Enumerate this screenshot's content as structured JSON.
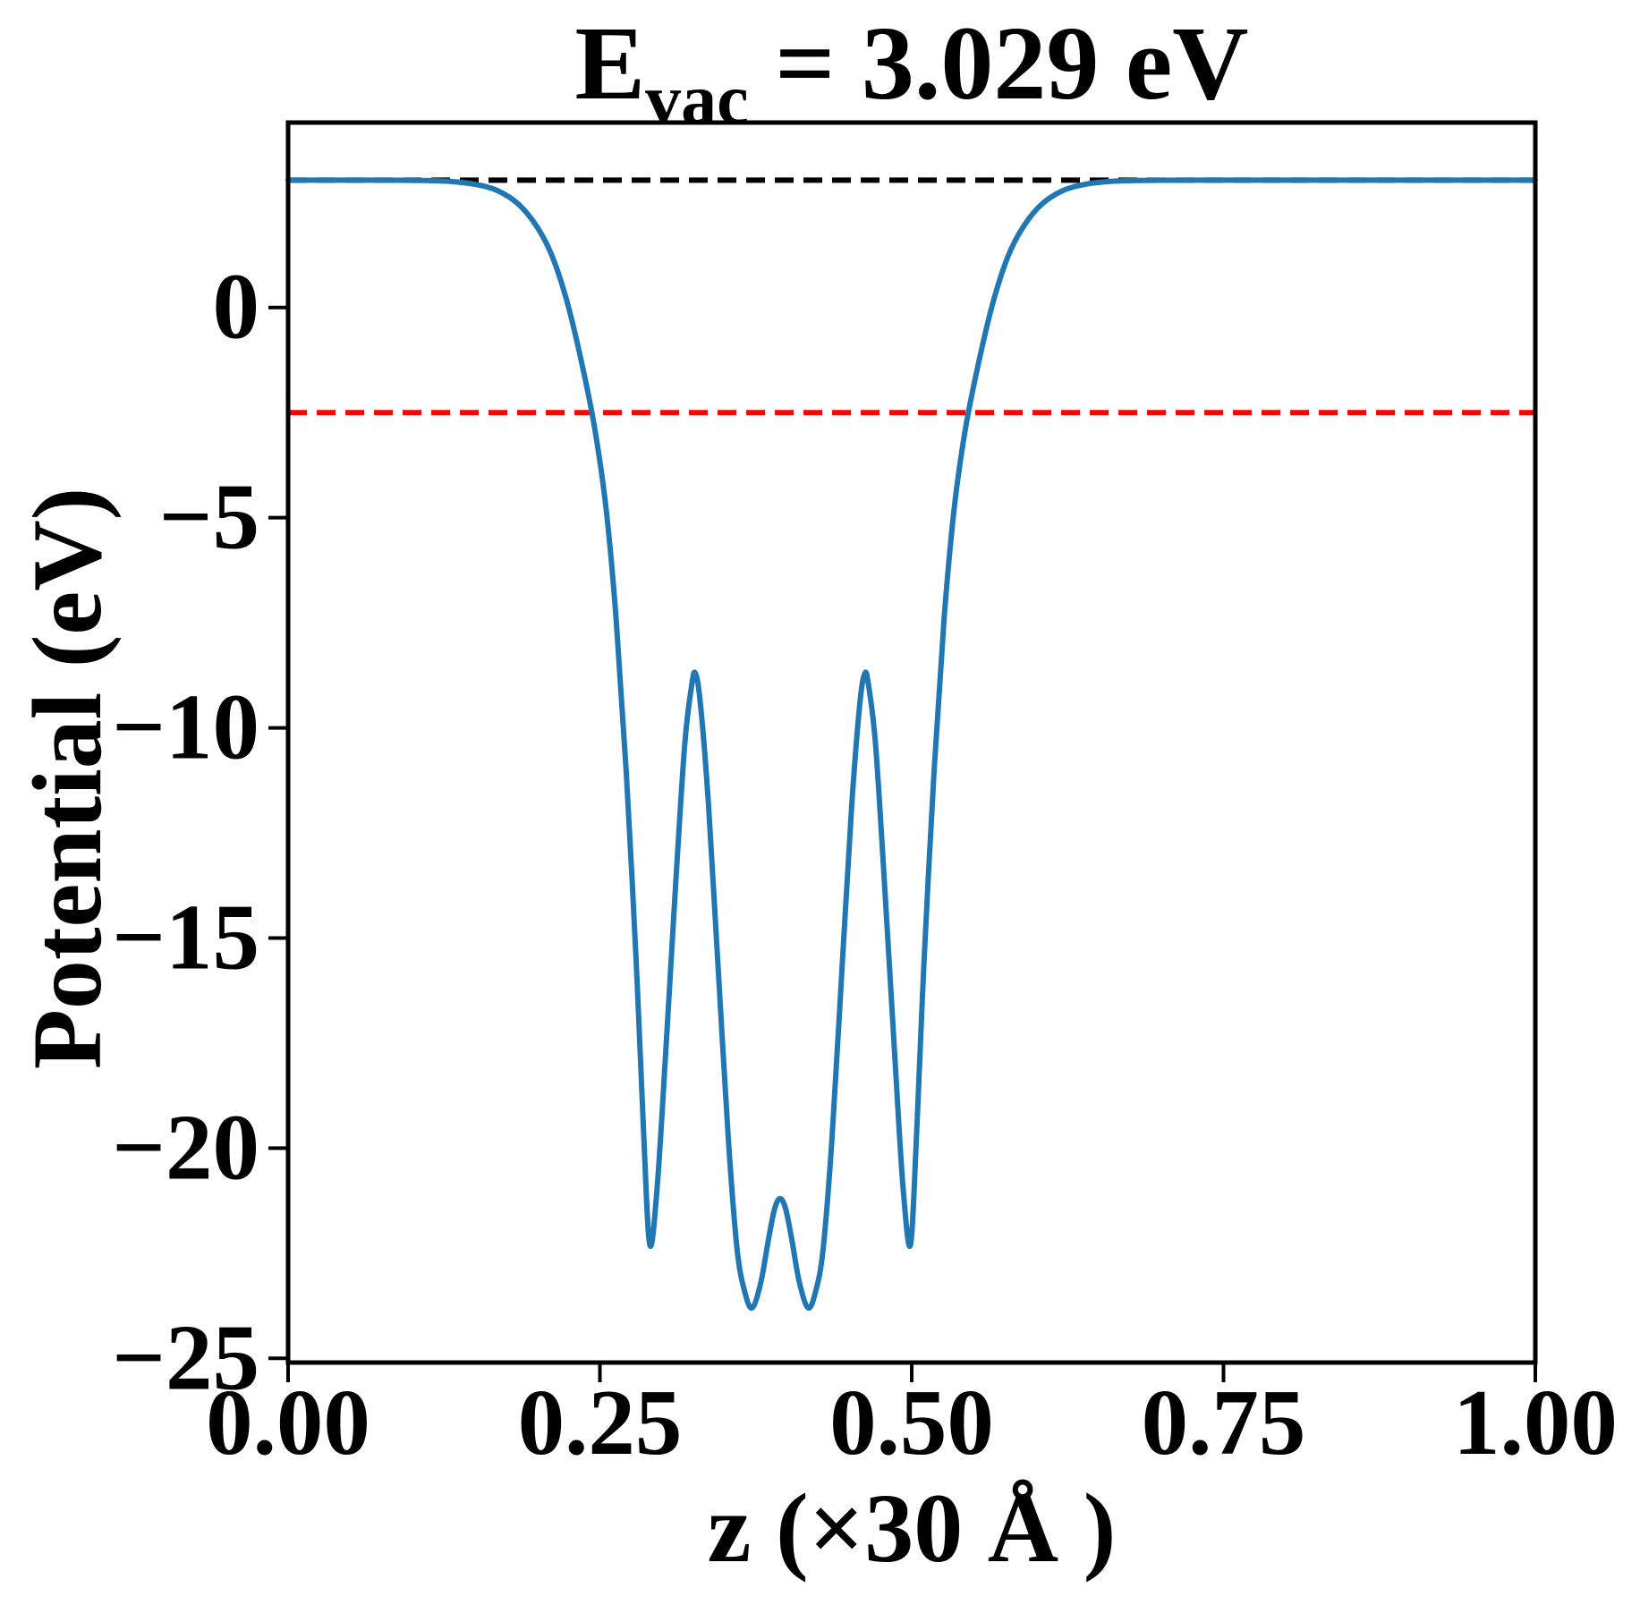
{
  "figure": {
    "background": "#ffffff",
    "title": {
      "base": "E",
      "sub": "vac",
      "rest": " = 3.029 eV"
    }
  },
  "chart_data": {
    "type": "line",
    "title": "E_vac = 3.029 eV",
    "xlabel": "z (×30 Å )",
    "ylabel": "Potential (eV)",
    "xlim": [
      0.0,
      1.0
    ],
    "ylim": [
      -25.1,
      4.4
    ],
    "grid": false,
    "legend_position": "none",
    "xticks": {
      "values": [
        0.0,
        0.25,
        0.5,
        0.75,
        1.0
      ],
      "labels": [
        "0.00",
        "0.25",
        "0.50",
        "0.75",
        "1.00"
      ]
    },
    "yticks": {
      "values": [
        0,
        -5,
        -10,
        -15,
        -20,
        -25
      ],
      "labels": [
        "0",
        "−5",
        "−10",
        "−15",
        "−20",
        "−25"
      ]
    },
    "E_vac_eV": 3.029,
    "hlines": [
      {
        "name": "vacuum-level-line",
        "y": 3.029,
        "color": "#000000",
        "dash": [
          21,
          11
        ],
        "width": 6
      },
      {
        "name": "fermi-level-line",
        "y": -2.5,
        "color": "#ff0000",
        "dash": [
          21,
          11
        ],
        "width": 6
      }
    ],
    "series": [
      {
        "name": "planar-averaged-potential",
        "color": "#1f77b4",
        "width": 6,
        "points": [
          [
            0.0,
            3.029
          ],
          [
            0.03,
            3.029
          ],
          [
            0.06,
            3.029
          ],
          [
            0.09,
            3.028
          ],
          [
            0.11,
            3.02
          ],
          [
            0.13,
            3.0
          ],
          [
            0.15,
            2.93
          ],
          [
            0.168,
            2.78
          ],
          [
            0.185,
            2.45
          ],
          [
            0.2,
            1.9
          ],
          [
            0.212,
            1.2
          ],
          [
            0.224,
            0.1
          ],
          [
            0.236,
            -1.4
          ],
          [
            0.246,
            -2.9
          ],
          [
            0.255,
            -4.8
          ],
          [
            0.263,
            -7.4
          ],
          [
            0.271,
            -11.0
          ],
          [
            0.279,
            -15.5
          ],
          [
            0.285,
            -19.6
          ],
          [
            0.29,
            -22.3
          ],
          [
            0.296,
            -20.9
          ],
          [
            0.303,
            -17.6
          ],
          [
            0.311,
            -13.6
          ],
          [
            0.318,
            -10.4
          ],
          [
            0.3235,
            -9.0
          ],
          [
            0.3265,
            -8.7
          ],
          [
            0.3305,
            -9.4
          ],
          [
            0.337,
            -11.8
          ],
          [
            0.345,
            -15.8
          ],
          [
            0.353,
            -19.8
          ],
          [
            0.36,
            -22.4
          ],
          [
            0.366,
            -23.4
          ],
          [
            0.372,
            -23.8
          ],
          [
            0.379,
            -23.2
          ],
          [
            0.385,
            -22.2
          ],
          [
            0.39,
            -21.45
          ],
          [
            0.3945,
            -21.2
          ],
          [
            0.399,
            -21.45
          ],
          [
            0.404,
            -22.2
          ],
          [
            0.41,
            -23.2
          ],
          [
            0.417,
            -23.8
          ],
          [
            0.423,
            -23.4
          ],
          [
            0.429,
            -22.4
          ],
          [
            0.436,
            -19.8
          ],
          [
            0.444,
            -15.8
          ],
          [
            0.452,
            -11.8
          ],
          [
            0.4585,
            -9.4
          ],
          [
            0.4625,
            -8.7
          ],
          [
            0.4655,
            -9.0
          ],
          [
            0.471,
            -10.4
          ],
          [
            0.478,
            -13.6
          ],
          [
            0.486,
            -17.6
          ],
          [
            0.493,
            -20.9
          ],
          [
            0.499,
            -22.3
          ],
          [
            0.504,
            -19.6
          ],
          [
            0.51,
            -15.5
          ],
          [
            0.518,
            -11.0
          ],
          [
            0.526,
            -7.4
          ],
          [
            0.534,
            -4.8
          ],
          [
            0.543,
            -2.9
          ],
          [
            0.553,
            -1.4
          ],
          [
            0.565,
            0.1
          ],
          [
            0.577,
            1.2
          ],
          [
            0.589,
            1.9
          ],
          [
            0.604,
            2.45
          ],
          [
            0.621,
            2.78
          ],
          [
            0.639,
            2.93
          ],
          [
            0.659,
            3.0
          ],
          [
            0.679,
            3.02
          ],
          [
            0.699,
            3.028
          ],
          [
            0.73,
            3.029
          ],
          [
            0.78,
            3.029
          ],
          [
            0.85,
            3.029
          ],
          [
            0.93,
            3.029
          ],
          [
            1.0,
            3.029
          ]
        ]
      }
    ]
  }
}
